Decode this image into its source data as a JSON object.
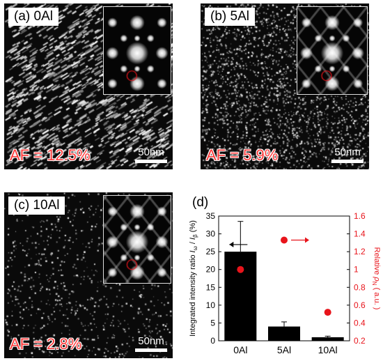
{
  "panels": [
    {
      "id": "a",
      "label": "(a) 0Al",
      "af": "AF = 12.5%",
      "scale": "50nm"
    },
    {
      "id": "b",
      "label": "(b) 5Al",
      "af": "AF = 5.9%",
      "scale": "50nm"
    },
    {
      "id": "c",
      "label": "(c) 10Al",
      "af": "AF = 2.8%",
      "scale": "50nm"
    }
  ],
  "chart_label": "(d)",
  "colors": {
    "bar": "#000000",
    "right_axis": "#e8141b",
    "marker": "#e8141b"
  },
  "chart_data": {
    "type": "bar",
    "categories": [
      "0Al",
      "5Al",
      "10Al"
    ],
    "series": [
      {
        "values": [
          25,
          4,
          1
        ],
        "errors": [
          8.5,
          1.3,
          0.3
        ],
        "axis": "left"
      },
      {
        "values": [
          1.0,
          1.33,
          0.52
        ],
        "axis": "right",
        "marker": "circle"
      }
    ],
    "ylabel": "Integrated intensity ratio I_ω / I_β (%)",
    "ylabel_parts": [
      "Integrated intensity ratio ",
      "I",
      "ω",
      " / ",
      "I",
      "β",
      " (%)"
    ],
    "y2label": "Relative ρ_N ( a.u. )",
    "y2label_parts": [
      "Relative ",
      "ρ",
      "N",
      " ( a.u. )"
    ],
    "ylim": [
      0,
      35
    ],
    "y2lim": [
      0.2,
      1.6
    ],
    "yticks": [
      "0",
      "5",
      "10",
      "15",
      "20",
      "25",
      "30",
      "35"
    ],
    "y2ticks": [
      "0.2",
      "0.4",
      "0.6",
      "0.8",
      "1",
      "1.2",
      "1.4",
      "1.6"
    ]
  }
}
